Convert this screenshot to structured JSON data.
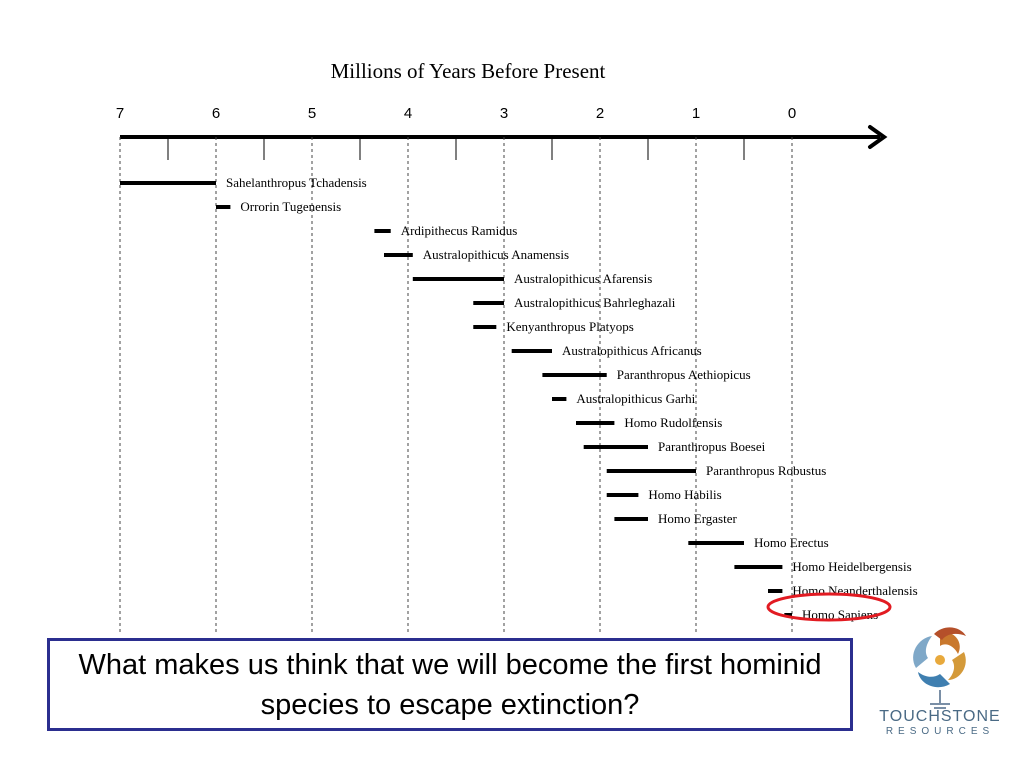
{
  "chart_data": {
    "type": "timeline",
    "xlabel": "Millions of Years Before Present",
    "x_direction": "decreasing left to right",
    "xlim": [
      7,
      0
    ],
    "ticks": [
      "7",
      "6",
      "5",
      "4",
      "3",
      "2",
      "1",
      "0"
    ],
    "grid": "dashed vertical lines at whole millions",
    "series": [
      {
        "name": "Sahelanthropus Tchadensis",
        "start": 7.0,
        "end": 6.0
      },
      {
        "name": "Orrorin Tugenensis",
        "start": 6.0,
        "end": 5.85
      },
      {
        "name": "Ardipithecus Ramidus",
        "start": 4.35,
        "end": 4.18
      },
      {
        "name": "Australopithicus Anamensis",
        "start": 4.25,
        "end": 3.95
      },
      {
        "name": "Australopithicus Afarensis",
        "start": 3.95,
        "end": 3.0
      },
      {
        "name": "Australopithicus Bahrleghazali",
        "start": 3.32,
        "end": 3.0
      },
      {
        "name": "Kenyanthropus Platyops",
        "start": 3.32,
        "end": 3.08
      },
      {
        "name": "Australopithicus Africanus",
        "start": 2.92,
        "end": 2.5
      },
      {
        "name": "Paranthropus Aethiopicus",
        "start": 2.6,
        "end": 1.93
      },
      {
        "name": "Australopithicus Garhi",
        "start": 2.5,
        "end": 2.35
      },
      {
        "name": "Homo Rudolfensis",
        "start": 2.25,
        "end": 1.85
      },
      {
        "name": "Paranthropus Boesei",
        "start": 2.17,
        "end": 1.5
      },
      {
        "name": "Paranthropus Robustus",
        "start": 1.93,
        "end": 1.0
      },
      {
        "name": "Homo Habilis",
        "start": 1.93,
        "end": 1.6
      },
      {
        "name": "Homo Ergaster",
        "start": 1.85,
        "end": 1.5
      },
      {
        "name": "Homo Erectus",
        "start": 1.08,
        "end": 0.5
      },
      {
        "name": "Homo Heidelbergensis",
        "start": 0.6,
        "end": 0.1
      },
      {
        "name": "Homo Neanderthalensis",
        "start": 0.25,
        "end": 0.1
      },
      {
        "name": "Homo Sapiens",
        "start": 0.08,
        "end": 0.0
      }
    ],
    "highlight": {
      "name": "Homo Sapiens",
      "color": "#e21b22"
    }
  },
  "question": "What makes us think that we will become the first hominid species to escape extinction?",
  "logo": {
    "icon": "swirl-logo-icon",
    "word": "TOUCHSTONE",
    "sub": "RESOURCES"
  },
  "colors": {
    "box_border": "#2b2e8f",
    "highlight": "#e21b22",
    "logo_text": "#4a6a85"
  }
}
